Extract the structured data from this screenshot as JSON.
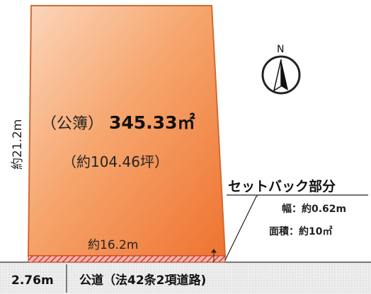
{
  "plot": {
    "area_label": "（公簿）",
    "area_value": "345.33㎡",
    "tsubo_label": "（約104.46坪）",
    "depth_label": "約21.2m",
    "frontage_label": "約16.2m"
  },
  "setback": {
    "title": "セットバック部分",
    "width_label": "幅：約0.62m",
    "area_label": "面積：約10㎡"
  },
  "road": {
    "width_label": "2.76m",
    "name_label": "公道（法42条2項道路)"
  },
  "compass": {
    "north_label": "N",
    "icon": "north-arrow-icon"
  },
  "colors": {
    "plot_fill_light": "#fbd3b6",
    "plot_fill_dark": "#f07a35",
    "plot_stroke": "#d8713a",
    "setback_hatch": "#d23a2f",
    "road_fill": "#e9e9e9",
    "text": "#111111"
  }
}
